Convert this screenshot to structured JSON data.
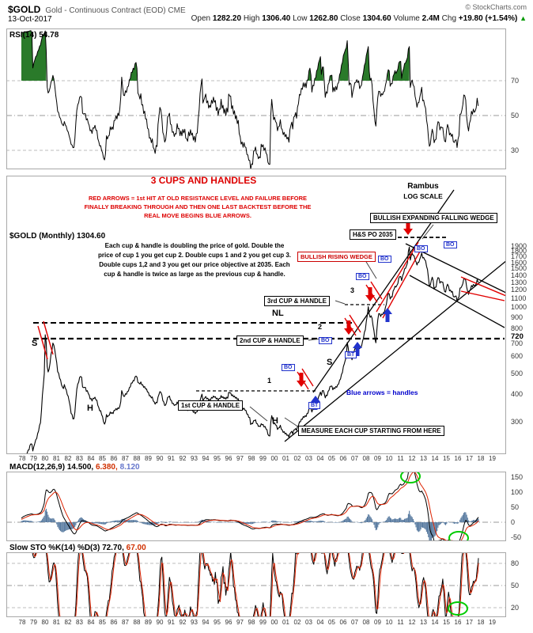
{
  "colors": {
    "arrow_red": "#e00000",
    "arrow_blue": "#2233cc",
    "annotation_red": "#dd0000",
    "note_blue": "#0000cc",
    "green_circle": "#00cc00",
    "macd_hist": "#55789e",
    "signal_red": "#dd2200",
    "overbought_green": "#2a7a2a"
  },
  "header": {
    "symbol": "$GOLD",
    "name": "Gold - Continuous Contract (EOD) CME",
    "date": "13-Oct-2017",
    "copyright": "© StockCharts.com",
    "quote": {
      "open_label": "Open",
      "open": "1282.20",
      "high_label": "High",
      "high": "1306.40",
      "low_label": "Low",
      "low": "1262.80",
      "close_label": "Close",
      "close": "1304.60",
      "volume_label": "Volume",
      "volume": "2.4M",
      "chg_label": "Chg",
      "chg": "+19.80 (+1.54%)",
      "chg_arrow": "▲"
    }
  },
  "rsi_panel": {
    "label": "RSI(14)",
    "value": "54.78",
    "levels": [
      "70",
      "50",
      "30"
    ]
  },
  "main_panel": {
    "label": "$GOLD (Monthly) 1304.60",
    "price_axis": [
      "1900",
      "1800",
      "1700",
      "1600",
      "1500",
      "1400",
      "1300",
      "1200",
      "1100",
      "1000",
      "900",
      "800",
      "720",
      "700",
      "600",
      "500",
      "400",
      "300"
    ],
    "title_note": "3 CUPS AND HANDLES",
    "red_note": [
      "RED ARROWS = 1st HIT AT OLD RESISTANCE LEVEL AND FAILURE BEFORE",
      "FINALLY BREAKING THROUGH AND THEN ONE LAST BACKTEST BEFORE THE",
      "REAL MOVE BEGINS BLUE ARROWS."
    ],
    "rambus": {
      "line1": "Rambus",
      "line2": "LOG SCALE"
    },
    "explain_note": [
      "Each cup & handle is doubling the price of gold. Double the",
      "price of cup 1 you get cup 2. Double cups 1 and 2 you get cup 3.",
      "Double cups 1,2 and 3 you get our price objective at 2035. Each",
      "cup & handle is twice as large as the previous cup & handle."
    ],
    "boxes": {
      "expanding_wedge": "BULLISH EXPANDING FALLING WEDGE",
      "hs_po": "H&S PO 2035",
      "rising_wedge": "BULLISH RISING WEDGE",
      "cup3": "3rd CUP & HANDLE",
      "cup2": "2nd CUP & HANDLE",
      "cup1": "1st CUP & HANDLE",
      "measure": "MEASURE EACH CUP STARTING FROM HERE"
    },
    "letters": {
      "nl": "NL",
      "s_left": "S",
      "h_left": "H",
      "h_mid": "H",
      "s_right": "S",
      "c1": "1",
      "c2": "2",
      "c3": "3"
    },
    "markers": {
      "bo": "BO",
      "bt": "BT"
    },
    "blue_note": "Blue arrows = handles"
  },
  "macd_panel": {
    "label": "MACD(12,26,9)",
    "value_macd": "14.500,",
    "value_signal": "6.380,",
    "value_hist": "8.120",
    "axis": [
      "150",
      "100",
      "50",
      "0",
      "-50"
    ]
  },
  "sto_panel": {
    "label": "Slow STO %K(14) %D(3)",
    "value_k": "72.70,",
    "value_d": "67.00",
    "axis": [
      "80",
      "50",
      "20"
    ]
  },
  "x_axis_years": [
    "78",
    "79",
    "80",
    "81",
    "82",
    "83",
    "84",
    "85",
    "86",
    "87",
    "88",
    "89",
    "90",
    "91",
    "92",
    "93",
    "94",
    "95",
    "96",
    "97",
    "98",
    "99",
    "00",
    "01",
    "02",
    "03",
    "04",
    "05",
    "06",
    "07",
    "08",
    "09",
    "10",
    "11",
    "12",
    "13",
    "14",
    "15",
    "16",
    "17",
    "18",
    "19"
  ],
  "chart_data": {
    "type": "line",
    "title": "$GOLD Gold - Continuous Contract (EOD) CME, Monthly, log scale",
    "x_range": [
      1978,
      2019
    ],
    "panels": [
      {
        "name": "RSI(14)",
        "ylim": [
          20,
          100
        ],
        "gridlines": [
          30,
          50,
          70
        ],
        "last_value": 54.78,
        "derived_from": "price_monthly"
      },
      {
        "name": "$GOLD monthly close",
        "scale": "log",
        "ylim": [
          250,
          2100
        ],
        "yticks": [
          300,
          400,
          500,
          600,
          700,
          720,
          800,
          900,
          1000,
          1100,
          1200,
          1300,
          1400,
          1500,
          1600,
          1700,
          1800,
          1900
        ],
        "last_value": 1304.6,
        "key_levels": {
          "neckline_NL": 860,
          "cup2_rim": 720,
          "cup1_rim": 420,
          "cup3_rim": 1030,
          "hs_price_objective": 2035
        }
      },
      {
        "name": "MACD(12,26,9)",
        "ylim": [
          -75,
          165
        ],
        "last_values": {
          "macd": 14.5,
          "signal": 6.38,
          "hist": 8.12
        },
        "derived_from": "price_monthly"
      },
      {
        "name": "Slow STO %K(14) %D(3)",
        "ylim": [
          0,
          100
        ],
        "gridlines": [
          20,
          50,
          80
        ],
        "last_values": {
          "k": 72.7,
          "d": 67.0
        },
        "derived_from": "price_monthly"
      }
    ],
    "price_monthly": [
      [
        1976.6,
        112
      ],
      [
        1976.9,
        131
      ],
      [
        1977.2,
        140
      ],
      [
        1977.6,
        147
      ],
      [
        1977.9,
        168
      ],
      [
        1978.0,
        196
      ],
      [
        1978.2,
        206
      ],
      [
        1978.4,
        215
      ],
      [
        1978.6,
        225
      ],
      [
        1978.8,
        243
      ],
      [
        1978.95,
        220
      ],
      [
        1979.1,
        240
      ],
      [
        1979.3,
        256
      ],
      [
        1979.5,
        284
      ],
      [
        1979.65,
        307
      ],
      [
        1979.75,
        392
      ],
      [
        1979.85,
        437
      ],
      [
        1979.95,
        515
      ],
      [
        1980.04,
        843
      ],
      [
        1980.12,
        653
      ],
      [
        1980.2,
        505
      ],
      [
        1980.35,
        517
      ],
      [
        1980.5,
        598
      ],
      [
        1980.65,
        662
      ],
      [
        1980.72,
        700
      ],
      [
        1980.85,
        632
      ],
      [
        1980.95,
        592
      ],
      [
        1981.1,
        512
      ],
      [
        1981.25,
        481
      ],
      [
        1981.4,
        452
      ],
      [
        1981.55,
        422
      ],
      [
        1981.7,
        442
      ],
      [
        1981.85,
        416
      ],
      [
        1981.95,
        400
      ],
      [
        1982.1,
        376
      ],
      [
        1982.25,
        332
      ],
      [
        1982.4,
        316
      ],
      [
        1982.5,
        302
      ],
      [
        1982.65,
        352
      ],
      [
        1982.75,
        422
      ],
      [
        1982.9,
        452
      ],
      [
        1983.05,
        481
      ],
      [
        1983.15,
        492
      ],
      [
        1983.3,
        421
      ],
      [
        1983.45,
        436
      ],
      [
        1983.6,
        416
      ],
      [
        1983.75,
        410
      ],
      [
        1983.9,
        386
      ],
      [
        1984.1,
        376
      ],
      [
        1984.3,
        388
      ],
      [
        1984.5,
        376
      ],
      [
        1984.7,
        343
      ],
      [
        1984.9,
        331
      ],
      [
        1985.1,
        302
      ],
      [
        1985.2,
        288
      ],
      [
        1985.35,
        321
      ],
      [
        1985.5,
        316
      ],
      [
        1985.7,
        331
      ],
      [
        1985.9,
        327
      ],
      [
        1986.1,
        341
      ],
      [
        1986.3,
        343
      ],
      [
        1986.55,
        351
      ],
      [
        1986.7,
        421
      ],
      [
        1986.85,
        389
      ],
      [
        1986.95,
        396
      ],
      [
        1987.15,
        406
      ],
      [
        1987.35,
        426
      ],
      [
        1987.55,
        451
      ],
      [
        1987.75,
        463
      ],
      [
        1987.95,
        491
      ],
      [
        1988.15,
        446
      ],
      [
        1988.35,
        452
      ],
      [
        1988.55,
        436
      ],
      [
        1988.75,
        428
      ],
      [
        1988.95,
        412
      ],
      [
        1989.15,
        392
      ],
      [
        1989.35,
        386
      ],
      [
        1989.55,
        363
      ],
      [
        1989.75,
        366
      ],
      [
        1989.95,
        406
      ],
      [
        1990.1,
        412
      ],
      [
        1990.3,
        371
      ],
      [
        1990.5,
        352
      ],
      [
        1990.65,
        381
      ],
      [
        1990.8,
        396
      ],
      [
        1990.95,
        378
      ],
      [
        1991.15,
        362
      ],
      [
        1991.35,
        356
      ],
      [
        1991.55,
        368
      ],
      [
        1991.75,
        355
      ],
      [
        1991.95,
        352
      ],
      [
        1992.15,
        354
      ],
      [
        1992.35,
        338
      ],
      [
        1992.55,
        343
      ],
      [
        1992.75,
        342
      ],
      [
        1992.95,
        333
      ],
      [
        1993.15,
        328
      ],
      [
        1993.35,
        342
      ],
      [
        1993.55,
        378
      ],
      [
        1993.65,
        406
      ],
      [
        1993.8,
        371
      ],
      [
        1993.95,
        391
      ],
      [
        1994.15,
        382
      ],
      [
        1994.35,
        377
      ],
      [
        1994.55,
        386
      ],
      [
        1994.75,
        392
      ],
      [
        1994.95,
        383
      ],
      [
        1995.15,
        378
      ],
      [
        1995.35,
        392
      ],
      [
        1995.55,
        386
      ],
      [
        1995.75,
        383
      ],
      [
        1995.95,
        388
      ],
      [
        1996.05,
        414
      ],
      [
        1996.25,
        398
      ],
      [
        1996.45,
        392
      ],
      [
        1996.65,
        386
      ],
      [
        1996.85,
        379
      ],
      [
        1997.05,
        354
      ],
      [
        1997.25,
        345
      ],
      [
        1997.45,
        341
      ],
      [
        1997.65,
        324
      ],
      [
        1997.85,
        311
      ],
      [
        1997.95,
        290
      ],
      [
        1998.1,
        296
      ],
      [
        1998.3,
        308
      ],
      [
        1998.5,
        292
      ],
      [
        1998.7,
        284
      ],
      [
        1998.9,
        294
      ],
      [
        1999.1,
        286
      ],
      [
        1999.3,
        279
      ],
      [
        1999.5,
        258
      ],
      [
        1999.58,
        253
      ],
      [
        1999.75,
        326
      ],
      [
        1999.9,
        296
      ],
      [
        2000.1,
        293
      ],
      [
        2000.3,
        276
      ],
      [
        2000.5,
        288
      ],
      [
        2000.7,
        272
      ],
      [
        2000.9,
        267
      ],
      [
        2001.1,
        262
      ],
      [
        2001.28,
        256
      ],
      [
        2001.45,
        272
      ],
      [
        2001.6,
        266
      ],
      [
        2001.75,
        278
      ],
      [
        2001.95,
        276
      ],
      [
        2002.15,
        296
      ],
      [
        2002.35,
        306
      ],
      [
        2002.55,
        316
      ],
      [
        2002.75,
        318
      ],
      [
        2002.95,
        332
      ],
      [
        2003.1,
        352
      ],
      [
        2003.25,
        334
      ],
      [
        2003.45,
        346
      ],
      [
        2003.65,
        363
      ],
      [
        2003.85,
        386
      ],
      [
        2003.98,
        410
      ],
      [
        2004.1,
        399
      ],
      [
        2004.25,
        424
      ],
      [
        2004.4,
        387
      ],
      [
        2004.6,
        398
      ],
      [
        2004.8,
        426
      ],
      [
        2004.95,
        441
      ],
      [
        2005.1,
        423
      ],
      [
        2005.3,
        429
      ],
      [
        2005.5,
        437
      ],
      [
        2005.7,
        462
      ],
      [
        2005.9,
        498
      ],
      [
        2006.1,
        556
      ],
      [
        2006.25,
        581
      ],
      [
        2006.38,
        718
      ],
      [
        2006.5,
        591
      ],
      [
        2006.62,
        622
      ],
      [
        2006.78,
        576
      ],
      [
        2006.95,
        632
      ],
      [
        2007.1,
        652
      ],
      [
        2007.3,
        662
      ],
      [
        2007.5,
        648
      ],
      [
        2007.65,
        678
      ],
      [
        2007.8,
        742
      ],
      [
        2007.95,
        801
      ],
      [
        2008.1,
        922
      ],
      [
        2008.2,
        1012
      ],
      [
        2008.32,
        881
      ],
      [
        2008.45,
        926
      ],
      [
        2008.6,
        831
      ],
      [
        2008.75,
        731
      ],
      [
        2008.85,
        682
      ],
      [
        2008.95,
        812
      ],
      [
        2009.1,
        941
      ],
      [
        2009.25,
        912
      ],
      [
        2009.4,
        928
      ],
      [
        2009.55,
        942
      ],
      [
        2009.7,
        996
      ],
      [
        2009.85,
        1098
      ],
      [
        2009.95,
        1179
      ],
      [
        2010.1,
        1098
      ],
      [
        2010.25,
        1112
      ],
      [
        2010.4,
        1208
      ],
      [
        2010.55,
        1243
      ],
      [
        2010.7,
        1248
      ],
      [
        2010.85,
        1346
      ],
      [
        2010.95,
        1398
      ],
      [
        2011.1,
        1332
      ],
      [
        2011.25,
        1428
      ],
      [
        2011.4,
        1512
      ],
      [
        2011.52,
        1532
      ],
      [
        2011.62,
        1618
      ],
      [
        2011.7,
        1828
      ],
      [
        2011.77,
        1898
      ],
      [
        2011.85,
        1626
      ],
      [
        2011.95,
        1752
      ],
      [
        2012.1,
        1738
      ],
      [
        2012.25,
        1668
      ],
      [
        2012.4,
        1562
      ],
      [
        2012.55,
        1598
      ],
      [
        2012.7,
        1652
      ],
      [
        2012.82,
        1778
      ],
      [
        2012.95,
        1678
      ],
      [
        2013.1,
        1662
      ],
      [
        2013.22,
        1592
      ],
      [
        2013.35,
        1472
      ],
      [
        2013.42,
        1392
      ],
      [
        2013.52,
        1232
      ],
      [
        2013.68,
        1312
      ],
      [
        2013.78,
        1392
      ],
      [
        2013.95,
        1202
      ],
      [
        2014.1,
        1244
      ],
      [
        2014.2,
        1326
      ],
      [
        2014.28,
        1385
      ],
      [
        2014.45,
        1288
      ],
      [
        2014.6,
        1312
      ],
      [
        2014.72,
        1282
      ],
      [
        2014.85,
        1168
      ],
      [
        2014.95,
        1184
      ],
      [
        2015.1,
        1282
      ],
      [
        2015.25,
        1198
      ],
      [
        2015.4,
        1182
      ],
      [
        2015.55,
        1168
      ],
      [
        2015.65,
        1092
      ],
      [
        2015.8,
        1142
      ],
      [
        2015.95,
        1062
      ],
      [
        2016.1,
        1122
      ],
      [
        2016.2,
        1232
      ],
      [
        2016.35,
        1238
      ],
      [
        2016.48,
        1322
      ],
      [
        2016.58,
        1366
      ],
      [
        2016.7,
        1308
      ],
      [
        2016.85,
        1172
      ],
      [
        2016.95,
        1148
      ],
      [
        2017.1,
        1212
      ],
      [
        2017.2,
        1252
      ],
      [
        2017.3,
        1246
      ],
      [
        2017.4,
        1272
      ],
      [
        2017.5,
        1242
      ],
      [
        2017.6,
        1288
      ],
      [
        2017.7,
        1332
      ],
      [
        2017.79,
        1304.6
      ]
    ],
    "note": "price_monthly holds [decimal_year, USD/oz] anchor points read from the chart; RSI, MACD and Slow Stochastic curves shown are computed from this price series."
  }
}
